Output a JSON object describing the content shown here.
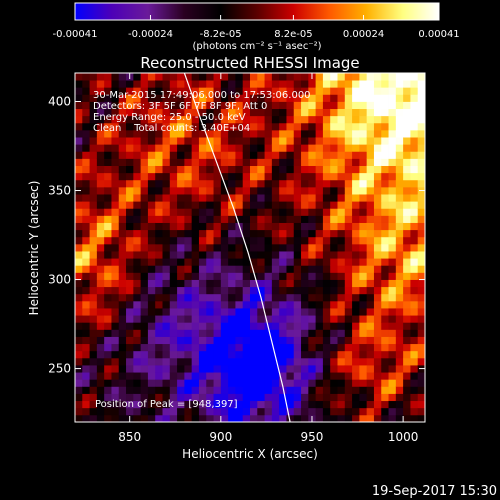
{
  "colorbar": {
    "tick_labels": [
      "-0.00041",
      "-0.00024",
      "-8.2e-05",
      "8.2e-05",
      "0.00024",
      "0.00041"
    ],
    "range": [
      -0.00041,
      0.00041
    ],
    "unit_label": "(photons cm⁻² s⁻¹ asec⁻²)",
    "colors": [
      "#0000ff",
      "#4c00b8",
      "#6a1a9a",
      "#2a0020",
      "#000000",
      "#5a0000",
      "#cc0000",
      "#ff5a00",
      "#ffb000",
      "#ffff80",
      "#ffffff"
    ]
  },
  "chart_data": {
    "type": "heatmap",
    "title": "Reconstructed RHESSI Image",
    "xlabel": "Heliocentric X (arcsec)",
    "ylabel": "Heliocentric Y (arcsec)",
    "xlim": [
      820,
      1012
    ],
    "ylim": [
      220,
      416
    ],
    "x_ticks": [
      850,
      900,
      950,
      1000
    ],
    "y_ticks": [
      250,
      300,
      350,
      400
    ],
    "grid_resolution_arcsec": 4,
    "limb_curve": {
      "x": [
        880,
        889,
        898,
        907,
        915,
        922,
        928,
        934,
        938
      ],
      "y": [
        416,
        390,
        365,
        340,
        315,
        290,
        265,
        240,
        220
      ]
    },
    "peak_position": [
      948,
      397
    ],
    "annotations": [
      "30-Mar-2015 17:49:06.000 to 17:53:06.000",
      "Detectors: 3F 5F 6F 7F 8F 9F, Att 0",
      "Energy Range: 25.0 - 50.0 keV",
      "Clean    Total counts: 3.40E+04"
    ],
    "peak_label": "Position of Peak = [948,397]"
  },
  "footer": {
    "timestamp": "19-Sep-2017 15:30"
  }
}
